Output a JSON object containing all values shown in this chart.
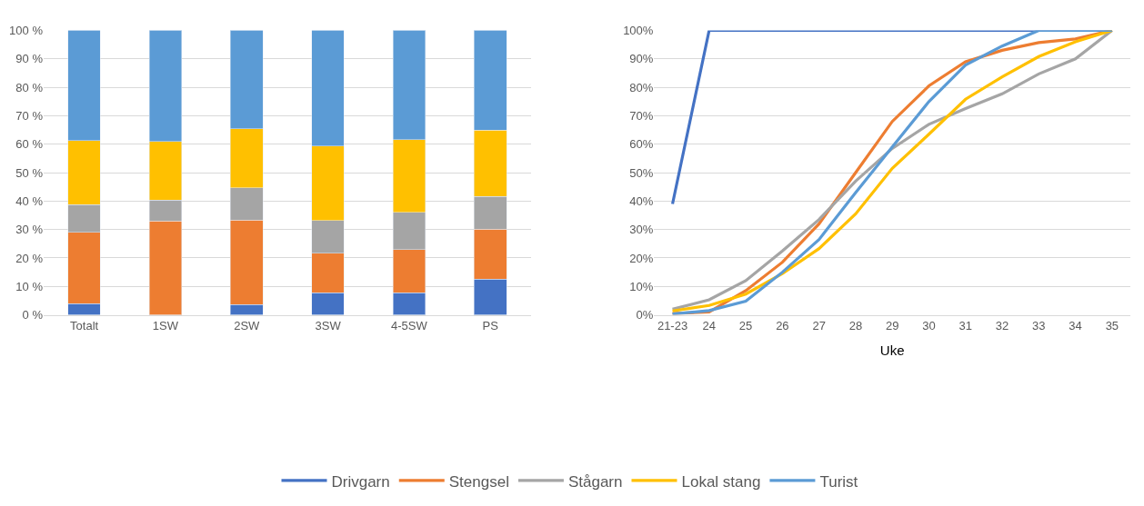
{
  "chart_data": [
    {
      "type": "bar",
      "stacked": true,
      "categories": [
        "Totalt",
        "1SW",
        "2SW",
        "3SW",
        "4-5SW",
        "PS"
      ],
      "series": [
        {
          "color": "#4472c4",
          "values": [
            4.0,
            0.0,
            3.6,
            7.8,
            7.7,
            12.5
          ]
        },
        {
          "color": "#ed7d31",
          "values": [
            25.0,
            33.0,
            29.7,
            13.9,
            15.3,
            17.6
          ]
        },
        {
          "color": "#a5a5a5",
          "values": [
            9.7,
            7.4,
            11.4,
            11.5,
            13.0,
            11.5
          ]
        },
        {
          "color": "#ffc000",
          "values": [
            22.6,
            20.6,
            20.8,
            26.1,
            25.6,
            23.4
          ]
        },
        {
          "color": "#5b9bd5",
          "values": [
            38.7,
            39.0,
            34.5,
            40.7,
            38.4,
            35.0
          ]
        }
      ],
      "ylim": [
        0,
        100
      ],
      "yticks": [
        {
          "value": 0,
          "label": "0 %"
        },
        {
          "value": 10,
          "label": "10 %"
        },
        {
          "value": 20,
          "label": "20 %"
        },
        {
          "value": 30,
          "label": "30 %"
        },
        {
          "value": 40,
          "label": "40 %"
        },
        {
          "value": 50,
          "label": "50 %"
        },
        {
          "value": 60,
          "label": "60 %"
        },
        {
          "value": 70,
          "label": "70 %"
        },
        {
          "value": 80,
          "label": "80 %"
        },
        {
          "value": 90,
          "label": "90 %"
        },
        {
          "value": 100,
          "label": "100 %"
        }
      ],
      "grid": "y"
    },
    {
      "type": "line",
      "xlabel": "Uke",
      "categories": [
        "21-23",
        "24",
        "25",
        "26",
        "27",
        "28",
        "29",
        "30",
        "31",
        "32",
        "33",
        "34",
        "35"
      ],
      "series": [
        {
          "name": "Drivgarn",
          "color": "#4472c4",
          "values": [
            39,
            100,
            100,
            100,
            100,
            100,
            100,
            100,
            100,
            100,
            100,
            100,
            100
          ]
        },
        {
          "name": "Stengsel",
          "color": "#ed7d31",
          "values": [
            0.5,
            1,
            8.5,
            18.5,
            32,
            50,
            68,
            80.5,
            89,
            93,
            95.7,
            97,
            100
          ]
        },
        {
          "name": "Stågarn",
          "color": "#a5a5a5",
          "values": [
            2,
            5.3,
            12,
            22.5,
            33.5,
            47,
            58.5,
            67,
            72.5,
            77.7,
            84.7,
            90,
            100
          ]
        },
        {
          "name": "Lokal stang",
          "color": "#ffc000",
          "values": [
            1.4,
            3.3,
            7.3,
            14.5,
            23.3,
            35.5,
            51.5,
            63.5,
            75.8,
            83.7,
            90.8,
            96,
            100
          ]
        },
        {
          "name": "Turist",
          "color": "#5b9bd5",
          "values": [
            0.3,
            1.5,
            4.8,
            15,
            26.5,
            43,
            59,
            75,
            87.8,
            94.5,
            100,
            100,
            100
          ]
        }
      ],
      "ylim": [
        0,
        100
      ],
      "yticks": [
        {
          "value": 0,
          "label": "0%"
        },
        {
          "value": 10,
          "label": "10%"
        },
        {
          "value": 20,
          "label": "20%"
        },
        {
          "value": 30,
          "label": "30%"
        },
        {
          "value": 40,
          "label": "40%"
        },
        {
          "value": 50,
          "label": "50%"
        },
        {
          "value": 60,
          "label": "60%"
        },
        {
          "value": 70,
          "label": "70%"
        },
        {
          "value": 80,
          "label": "80%"
        },
        {
          "value": 90,
          "label": "90%"
        },
        {
          "value": 100,
          "label": "100%"
        }
      ],
      "grid": "y",
      "legend": "bottom",
      "marker": "none",
      "line_style": "solid"
    }
  ]
}
